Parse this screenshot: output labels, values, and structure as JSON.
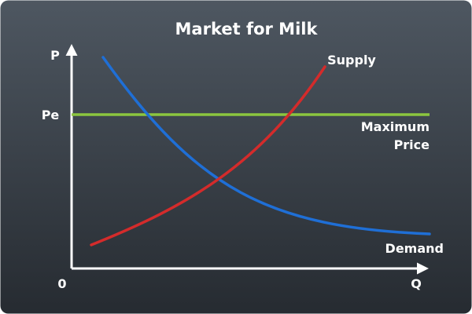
{
  "title": "Market for Milk",
  "axes": {
    "y_label": "P",
    "x_label": "Q",
    "origin_label": "0"
  },
  "price_label": "Pe",
  "supply": {
    "label": "Supply",
    "color": "#d42b2b"
  },
  "demand": {
    "label": "Demand",
    "color": "#1f6fd6"
  },
  "max_price": {
    "label_line1": "Maximum",
    "label_line2": "Price",
    "color": "#8cc63f"
  },
  "colors": {
    "background_top": "#4e5761",
    "background_bottom": "#262b31",
    "axis": "#ffffff",
    "text": "#ffffff"
  }
}
